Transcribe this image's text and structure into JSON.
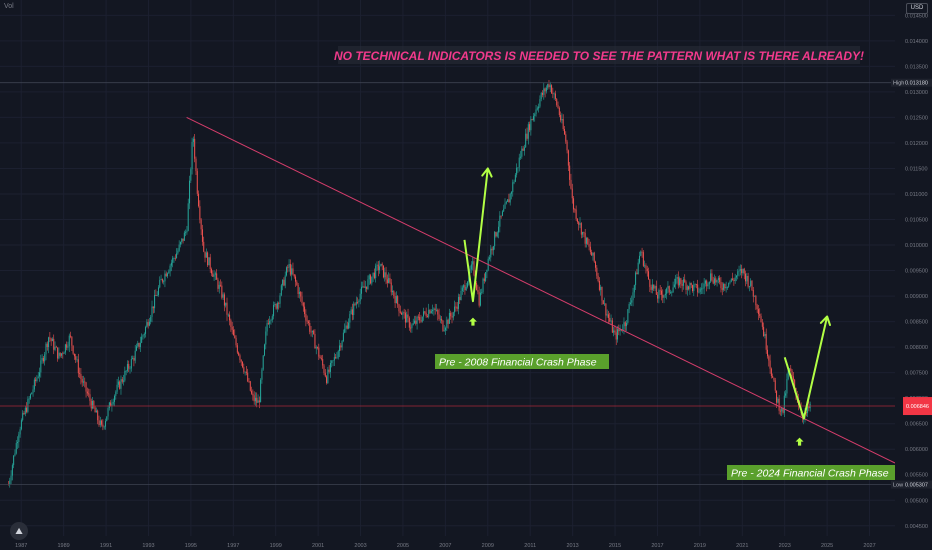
{
  "chart_data": {
    "type": "candlestick",
    "symbol_label": "Vol",
    "currency_label": "USD",
    "annotation_title": "NO TECHNICAL INDICATORS IS NEEDED TO SEE THE PATTERN WHAT IS THERE ALREADY!",
    "phase_labels": [
      "Pre - 2008 Financial Crash Phase",
      "Pre - 2024 Financial Crash Phase"
    ],
    "x_ticks": [
      "1987",
      "1989",
      "1991",
      "1993",
      "1995",
      "1997",
      "1999",
      "2001",
      "2003",
      "2005",
      "2007",
      "2009",
      "2011",
      "2013",
      "2015",
      "2017",
      "2019",
      "2021",
      "2023",
      "2025",
      "2027"
    ],
    "y_ticks": [
      "0.014500",
      "0.014000",
      "0.013500",
      "0.013000",
      "0.012500",
      "0.012000",
      "0.011500",
      "0.011000",
      "0.010500",
      "0.010000",
      "0.009500",
      "0.009000",
      "0.008500",
      "0.008000",
      "0.007500",
      "0.007000",
      "0.006500",
      "0.006000",
      "0.005500",
      "0.005000",
      "0.004500"
    ],
    "ylim": [
      0.0043,
      0.0148
    ],
    "xlim": [
      1986,
      2028.2
    ],
    "high_label": "High",
    "high_value": "0.013180",
    "low_label": "Low",
    "low_value": "0.005307",
    "current_value": "0.006846",
    "price_path": [
      [
        1986.4,
        0.00531
      ],
      [
        1986.9,
        0.0064
      ],
      [
        1987.4,
        0.007
      ],
      [
        1987.9,
        0.0076
      ],
      [
        1988.3,
        0.00822
      ],
      [
        1988.8,
        0.0078
      ],
      [
        1989.3,
        0.0082
      ],
      [
        1989.8,
        0.0074
      ],
      [
        1990.3,
        0.0069
      ],
      [
        1990.8,
        0.0064
      ],
      [
        1991.3,
        0.007
      ],
      [
        1991.8,
        0.0074
      ],
      [
        1992.3,
        0.0078
      ],
      [
        1992.8,
        0.0083
      ],
      [
        1993.2,
        0.0088
      ],
      [
        1993.6,
        0.0093
      ],
      [
        1994.0,
        0.0096
      ],
      [
        1994.4,
        0.0099
      ],
      [
        1994.8,
        0.0103
      ],
      [
        1995.1,
        0.0122
      ],
      [
        1995.3,
        0.0111
      ],
      [
        1995.6,
        0.0099
      ],
      [
        1996.0,
        0.0095
      ],
      [
        1996.5,
        0.009
      ],
      [
        1997.0,
        0.0082
      ],
      [
        1997.5,
        0.0076
      ],
      [
        1997.9,
        0.007
      ],
      [
        1998.2,
        0.0069
      ],
      [
        1998.6,
        0.0085
      ],
      [
        1999.1,
        0.0089
      ],
      [
        1999.6,
        0.0096
      ],
      [
        2000.0,
        0.0092
      ],
      [
        2000.5,
        0.0085
      ],
      [
        2001.0,
        0.0079
      ],
      [
        2001.4,
        0.0074
      ],
      [
        2001.9,
        0.0079
      ],
      [
        2002.4,
        0.0085
      ],
      [
        2002.9,
        0.009
      ],
      [
        2003.4,
        0.0093
      ],
      [
        2003.9,
        0.0096
      ],
      [
        2004.4,
        0.0092
      ],
      [
        2004.9,
        0.0087
      ],
      [
        2005.4,
        0.0084
      ],
      [
        2005.9,
        0.0086
      ],
      [
        2006.4,
        0.0088
      ],
      [
        2006.9,
        0.0084
      ],
      [
        2007.4,
        0.0087
      ],
      [
        2007.9,
        0.0092
      ],
      [
        2008.3,
        0.0096
      ],
      [
        2008.6,
        0.0089
      ],
      [
        2009.0,
        0.0097
      ],
      [
        2009.5,
        0.0104
      ],
      [
        2010.0,
        0.0109
      ],
      [
        2010.5,
        0.0117
      ],
      [
        2011.0,
        0.0124
      ],
      [
        2011.5,
        0.0129
      ],
      [
        2011.9,
        0.01318
      ],
      [
        2012.3,
        0.0127
      ],
      [
        2012.7,
        0.012
      ],
      [
        2013.0,
        0.0108
      ],
      [
        2013.5,
        0.0102
      ],
      [
        2014.0,
        0.0097
      ],
      [
        2014.5,
        0.0088
      ],
      [
        2015.0,
        0.0082
      ],
      [
        2015.5,
        0.0085
      ],
      [
        2015.9,
        0.0092
      ],
      [
        2016.2,
        0.0099
      ],
      [
        2016.6,
        0.0093
      ],
      [
        2017.0,
        0.009
      ],
      [
        2017.5,
        0.0091
      ],
      [
        2018.0,
        0.0093
      ],
      [
        2018.5,
        0.0092
      ],
      [
        2019.0,
        0.0091
      ],
      [
        2019.5,
        0.0094
      ],
      [
        2020.0,
        0.0092
      ],
      [
        2020.5,
        0.0093
      ],
      [
        2021.0,
        0.0095
      ],
      [
        2021.4,
        0.0092
      ],
      [
        2021.8,
        0.0087
      ],
      [
        2022.2,
        0.0079
      ],
      [
        2022.6,
        0.007
      ],
      [
        2022.9,
        0.0067
      ],
      [
        2023.2,
        0.0076
      ],
      [
        2023.6,
        0.007
      ],
      [
        2023.9,
        0.0066
      ],
      [
        2024.2,
        0.00685
      ]
    ],
    "trendline": [
      [
        1994.8,
        0.0125
      ],
      [
        2028.2,
        0.00573
      ]
    ],
    "lines": [
      {
        "label": "support",
        "value": 0.005307
      },
      {
        "label": "current",
        "value": 0.006846
      },
      {
        "label": "high",
        "value": 0.01318
      }
    ],
    "arrows": [
      {
        "points": [
          [
            2007.9,
            0.0101
          ],
          [
            2008.3,
            0.0089
          ],
          [
            2009.0,
            0.0115
          ]
        ],
        "color": "#b2ff45"
      },
      {
        "points": [
          [
            2023.0,
            0.0078
          ],
          [
            2023.9,
            0.0066
          ],
          [
            2025.0,
            0.0086
          ]
        ],
        "color": "#b2ff45"
      }
    ],
    "small_arrows": [
      [
        2008.3,
        0.00848
      ],
      [
        2023.7,
        0.00613
      ]
    ],
    "colors": {
      "up": "#26a69a",
      "down": "#ef5350",
      "trend": "#d43d6b",
      "accent": "#b2ff45",
      "title": "#f23a8c",
      "phase_bg": "#5aa02c",
      "current_bg": "#f23645"
    }
  }
}
